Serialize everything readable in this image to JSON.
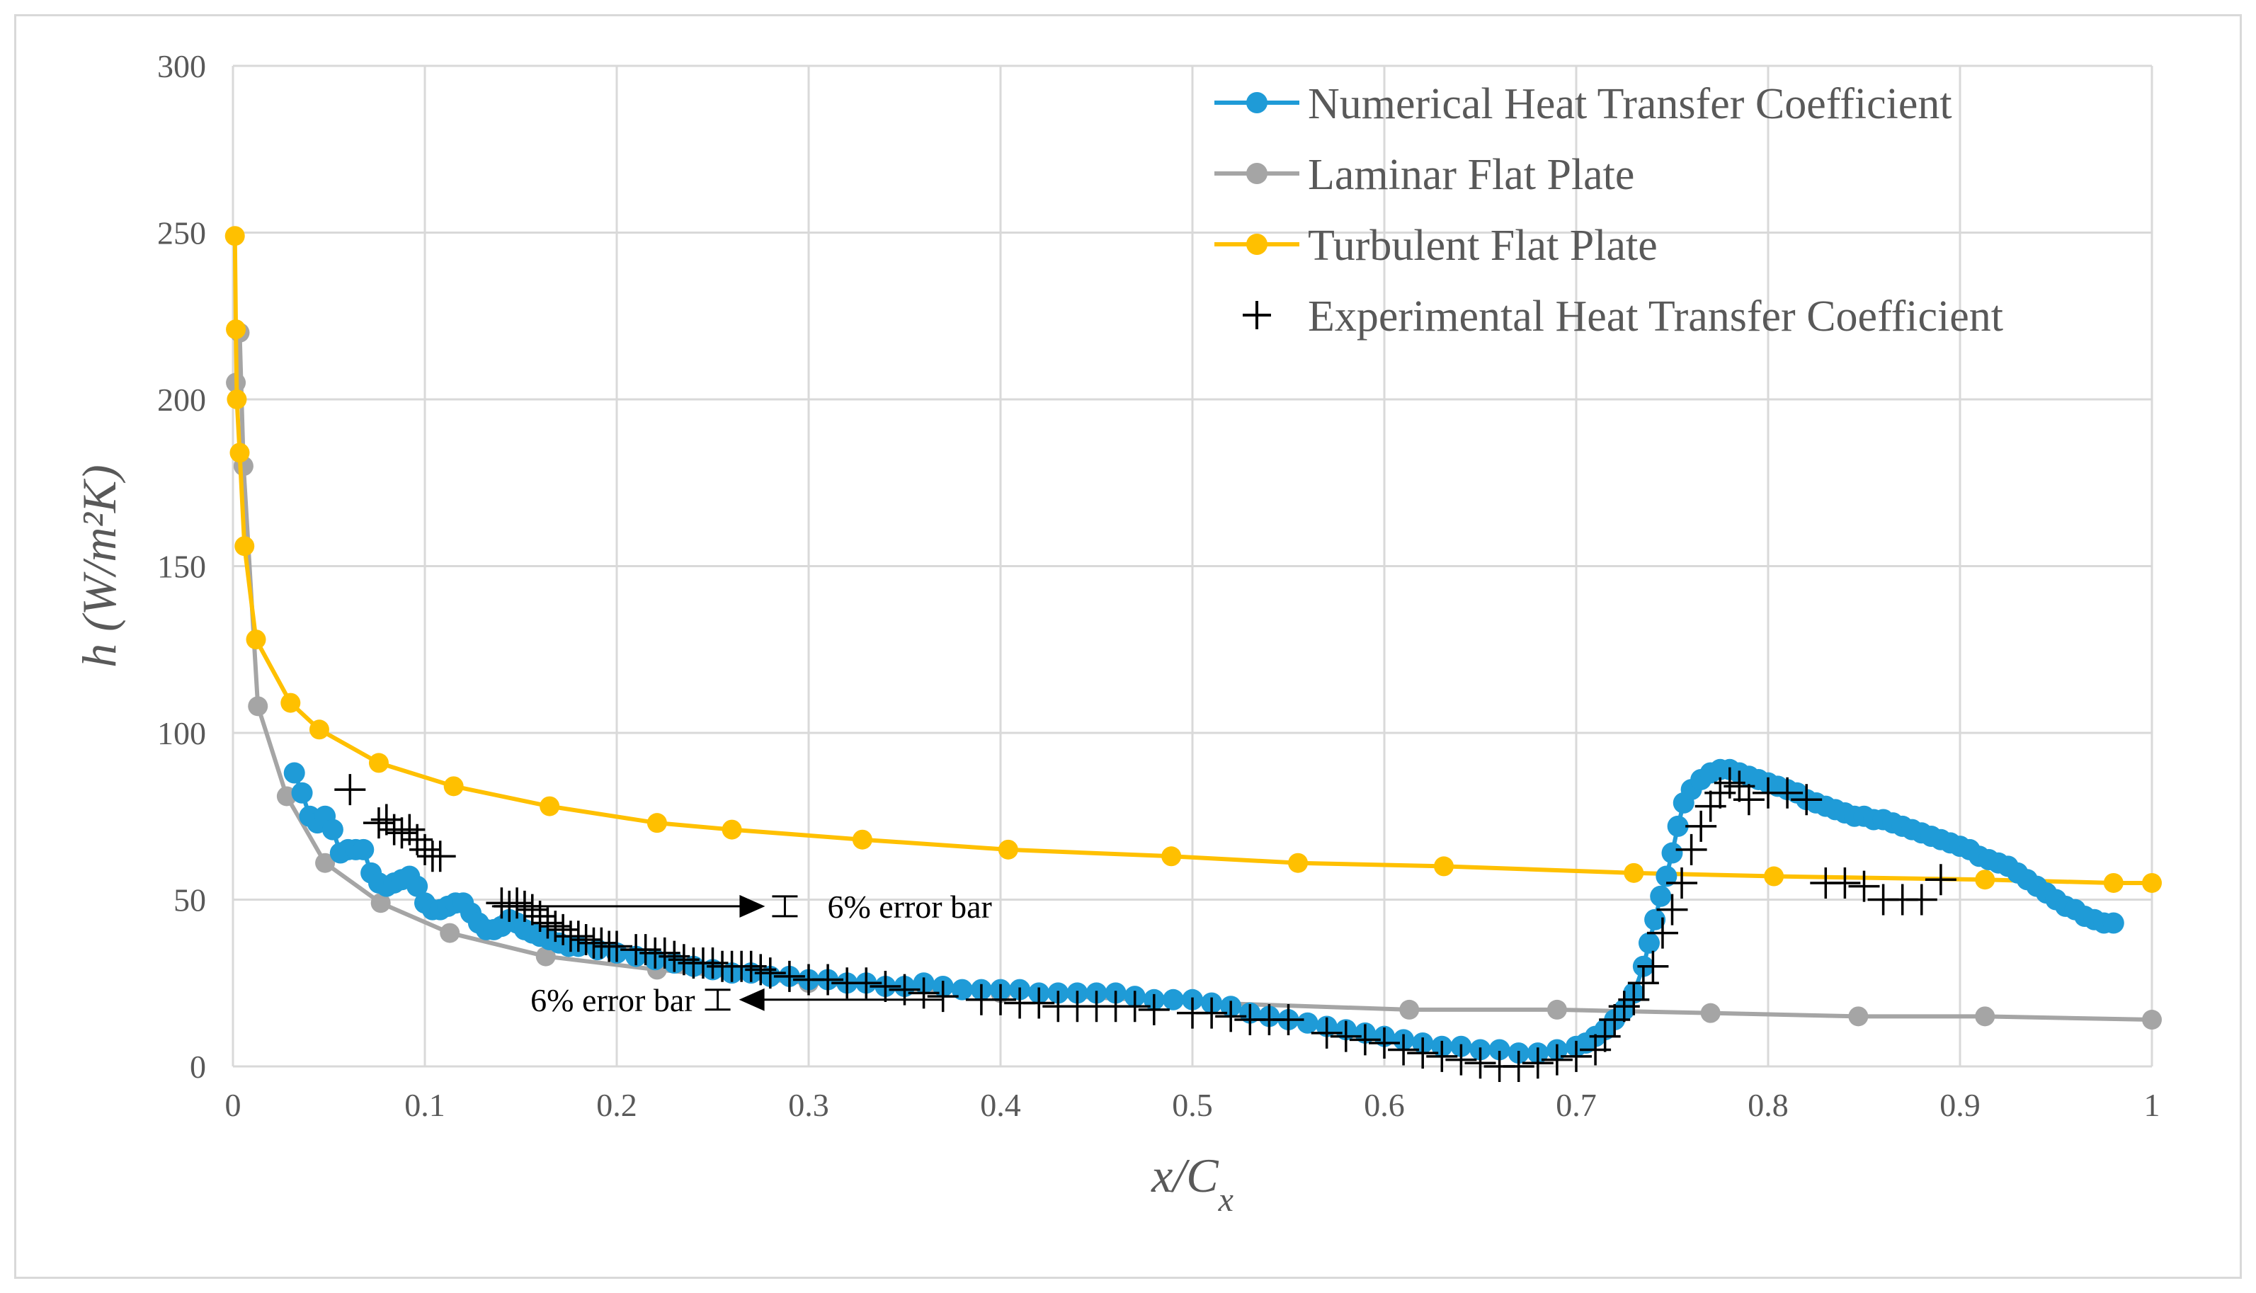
{
  "chart_data": {
    "type": "scatter",
    "title": "",
    "xlabel": "x/C",
    "xlabel_sub": "x",
    "ylabel": "h (W/m²K)",
    "xlim": [
      0,
      1
    ],
    "ylim": [
      0,
      300
    ],
    "x_ticks": [
      0,
      0.1,
      0.2,
      0.3,
      0.4,
      0.5,
      0.6,
      0.7,
      0.8,
      0.9,
      1
    ],
    "x_tick_labels": [
      "0",
      "0.1",
      "0.2",
      "0.3",
      "0.4",
      "0.5",
      "0.6",
      "0.7",
      "0.8",
      "0.9",
      "1"
    ],
    "y_ticks": [
      0,
      50,
      100,
      150,
      200,
      250,
      300
    ],
    "y_tick_labels": [
      "0",
      "50",
      "100",
      "150",
      "200",
      "250",
      "300"
    ],
    "grid": true,
    "legend_position": "top-right",
    "series": [
      {
        "name": "Numerical Heat Transfer Coefficient",
        "color": "#1f9bd7",
        "style": "line-markers",
        "x": [
          0.032,
          0.036,
          0.04,
          0.044,
          0.048,
          0.052,
          0.056,
          0.06,
          0.064,
          0.068,
          0.072,
          0.076,
          0.08,
          0.084,
          0.088,
          0.092,
          0.096,
          0.1,
          0.104,
          0.108,
          0.112,
          0.116,
          0.12,
          0.124,
          0.128,
          0.132,
          0.136,
          0.14,
          0.144,
          0.148,
          0.152,
          0.156,
          0.16,
          0.165,
          0.17,
          0.175,
          0.18,
          0.19,
          0.2,
          0.21,
          0.22,
          0.23,
          0.24,
          0.25,
          0.26,
          0.27,
          0.28,
          0.29,
          0.3,
          0.31,
          0.32,
          0.33,
          0.34,
          0.35,
          0.36,
          0.37,
          0.38,
          0.39,
          0.4,
          0.41,
          0.42,
          0.43,
          0.44,
          0.45,
          0.46,
          0.47,
          0.48,
          0.49,
          0.5,
          0.51,
          0.52,
          0.53,
          0.54,
          0.55,
          0.56,
          0.57,
          0.58,
          0.59,
          0.6,
          0.61,
          0.62,
          0.63,
          0.64,
          0.65,
          0.66,
          0.67,
          0.68,
          0.69,
          0.7,
          0.705,
          0.71,
          0.715,
          0.72,
          0.725,
          0.73,
          0.735,
          0.738,
          0.741,
          0.744,
          0.747,
          0.75,
          0.753,
          0.756,
          0.76,
          0.765,
          0.77,
          0.775,
          0.78,
          0.785,
          0.79,
          0.795,
          0.8,
          0.805,
          0.81,
          0.815,
          0.82,
          0.825,
          0.83,
          0.835,
          0.84,
          0.845,
          0.85,
          0.855,
          0.86,
          0.865,
          0.87,
          0.875,
          0.88,
          0.885,
          0.89,
          0.895,
          0.9,
          0.905,
          0.91,
          0.915,
          0.92,
          0.925,
          0.93,
          0.935,
          0.94,
          0.945,
          0.95,
          0.955,
          0.96,
          0.965,
          0.97,
          0.975,
          0.98
        ],
        "y": [
          88,
          82,
          75,
          73,
          75,
          71,
          64,
          65,
          65,
          65,
          58,
          55,
          54,
          55,
          56,
          57,
          54,
          49,
          47,
          47,
          48,
          49,
          49,
          46,
          43,
          41,
          41,
          42,
          44,
          43,
          41,
          40,
          39,
          38,
          37,
          36,
          36,
          35,
          34,
          33,
          32,
          31,
          30,
          29,
          28,
          28,
          27,
          27,
          26,
          26,
          25,
          25,
          24,
          24,
          25,
          24,
          23,
          23,
          23,
          23,
          22,
          22,
          22,
          22,
          22,
          21,
          20,
          20,
          20,
          19,
          18,
          16,
          15,
          14,
          13,
          12,
          11,
          10,
          9,
          8,
          7,
          6,
          6,
          5,
          5,
          4,
          4,
          5,
          6,
          7,
          9,
          11,
          14,
          17,
          22,
          30,
          37,
          44,
          51,
          57,
          64,
          72,
          79,
          83,
          86,
          88,
          89,
          89,
          88,
          87,
          86,
          85,
          84,
          83,
          82,
          80,
          79,
          78,
          77,
          76,
          75,
          75,
          74,
          74,
          73,
          72,
          71,
          70,
          69,
          68,
          67,
          66,
          65,
          63,
          62,
          61,
          60,
          58,
          56,
          54,
          52,
          50,
          48,
          47,
          45,
          44,
          43,
          43
        ]
      },
      {
        "name": "Laminar Flat Plate",
        "color": "#a5a5a5",
        "style": "line-markers",
        "x": [
          0.0015,
          0.0035,
          0.0055,
          0.013,
          0.028,
          0.048,
          0.077,
          0.113,
          0.163,
          0.221,
          0.3,
          0.4,
          0.51,
          0.613,
          0.69,
          0.77,
          0.847,
          0.913,
          1.0
        ],
        "y": [
          205,
          220,
          180,
          108,
          81,
          61,
          49,
          40,
          33,
          29,
          25,
          22,
          19,
          17,
          17,
          16,
          15,
          15,
          14
        ]
      },
      {
        "name": "Turbulent Flat Plate",
        "color": "#ffc000",
        "style": "line-markers",
        "x": [
          0.001,
          0.0015,
          0.002,
          0.0035,
          0.006,
          0.012,
          0.03,
          0.045,
          0.076,
          0.115,
          0.165,
          0.221,
          0.26,
          0.328,
          0.404,
          0.489,
          0.555,
          0.631,
          0.73,
          0.803,
          0.913,
          0.98,
          1.0
        ],
        "y": [
          249,
          221,
          200,
          184,
          156,
          128,
          109,
          101,
          91,
          84,
          78,
          73,
          71,
          68,
          65,
          63,
          61,
          60,
          58,
          57,
          56,
          55,
          55
        ]
      },
      {
        "name": "Experimental Heat Transfer Coefficient",
        "color": "#000000",
        "style": "plus-markers",
        "x": [
          0.061,
          0.076,
          0.08,
          0.084,
          0.088,
          0.092,
          0.096,
          0.1,
          0.104,
          0.108,
          0.14,
          0.144,
          0.148,
          0.152,
          0.156,
          0.16,
          0.164,
          0.168,
          0.172,
          0.176,
          0.18,
          0.184,
          0.188,
          0.192,
          0.196,
          0.2,
          0.21,
          0.215,
          0.22,
          0.225,
          0.23,
          0.235,
          0.24,
          0.245,
          0.25,
          0.255,
          0.26,
          0.265,
          0.27,
          0.275,
          0.28,
          0.29,
          0.3,
          0.31,
          0.32,
          0.33,
          0.34,
          0.35,
          0.36,
          0.37,
          0.39,
          0.4,
          0.41,
          0.42,
          0.43,
          0.44,
          0.45,
          0.46,
          0.47,
          0.48,
          0.5,
          0.51,
          0.52,
          0.53,
          0.54,
          0.55,
          0.57,
          0.58,
          0.59,
          0.6,
          0.61,
          0.62,
          0.63,
          0.64,
          0.65,
          0.66,
          0.67,
          0.68,
          0.69,
          0.7,
          0.71,
          0.715,
          0.72,
          0.725,
          0.73,
          0.735,
          0.74,
          0.745,
          0.75,
          0.755,
          0.76,
          0.765,
          0.77,
          0.775,
          0.78,
          0.785,
          0.79,
          0.8,
          0.81,
          0.82,
          0.83,
          0.84,
          0.85,
          0.86,
          0.87,
          0.88,
          0.89
        ],
        "y": [
          83,
          73,
          74,
          71,
          70,
          71,
          68,
          65,
          63,
          63,
          49,
          48,
          49,
          48,
          47,
          45,
          43,
          42,
          41,
          39,
          39,
          38,
          37,
          37,
          36,
          36,
          35,
          35,
          34,
          34,
          33,
          32,
          31,
          31,
          31,
          30,
          30,
          30,
          30,
          29,
          28,
          27,
          26,
          26,
          25,
          25,
          24,
          23,
          22,
          21,
          20,
          20,
          19,
          19,
          18,
          18,
          18,
          18,
          18,
          17,
          16,
          16,
          15,
          14,
          14,
          14,
          10,
          9,
          8,
          7,
          5,
          4,
          3,
          2,
          1,
          0,
          0,
          1,
          2,
          3,
          5,
          9,
          14,
          18,
          20,
          25,
          30,
          40,
          47,
          55,
          65,
          72,
          78,
          82,
          85,
          84,
          80,
          82,
          82,
          80,
          55,
          55,
          54,
          50,
          50,
          50,
          56
        ]
      }
    ],
    "annotations": [
      {
        "text": "6% error bar",
        "arrow": "right",
        "anchor_data": [
          0.264,
          48
        ]
      },
      {
        "text": "6% error bar",
        "arrow": "left",
        "anchor_data": [
          0.26,
          20
        ]
      }
    ]
  }
}
